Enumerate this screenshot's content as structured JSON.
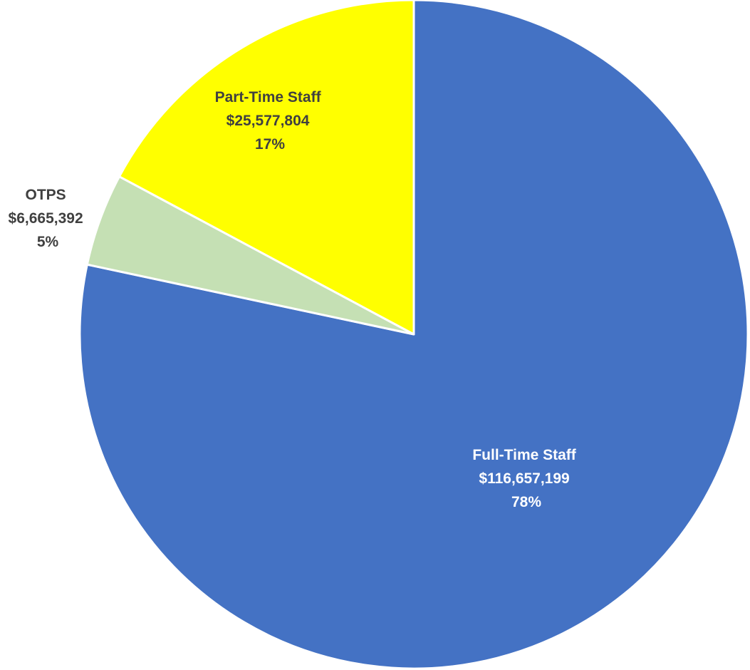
{
  "chart_data": {
    "type": "pie",
    "title": "",
    "start_angle_deg": 0,
    "direction": "clockwise",
    "slices": [
      {
        "name": "Full-Time Staff",
        "value_label": "$116,657,199",
        "value": 116657199,
        "percent_label": "78%",
        "color": "#4472C4",
        "label_color": "#ffffff"
      },
      {
        "name": "OTPS",
        "value_label": "$6,665,392",
        "value": 6665392,
        "percent_label": "5%",
        "color": "#C5E0B4",
        "label_color": "#404040"
      },
      {
        "name": "Part-Time Staff",
        "value_label": "$25,577,804",
        "value": 25577804,
        "percent_label": "17%",
        "color": "#FFFF00",
        "label_color": "#404040"
      }
    ]
  }
}
